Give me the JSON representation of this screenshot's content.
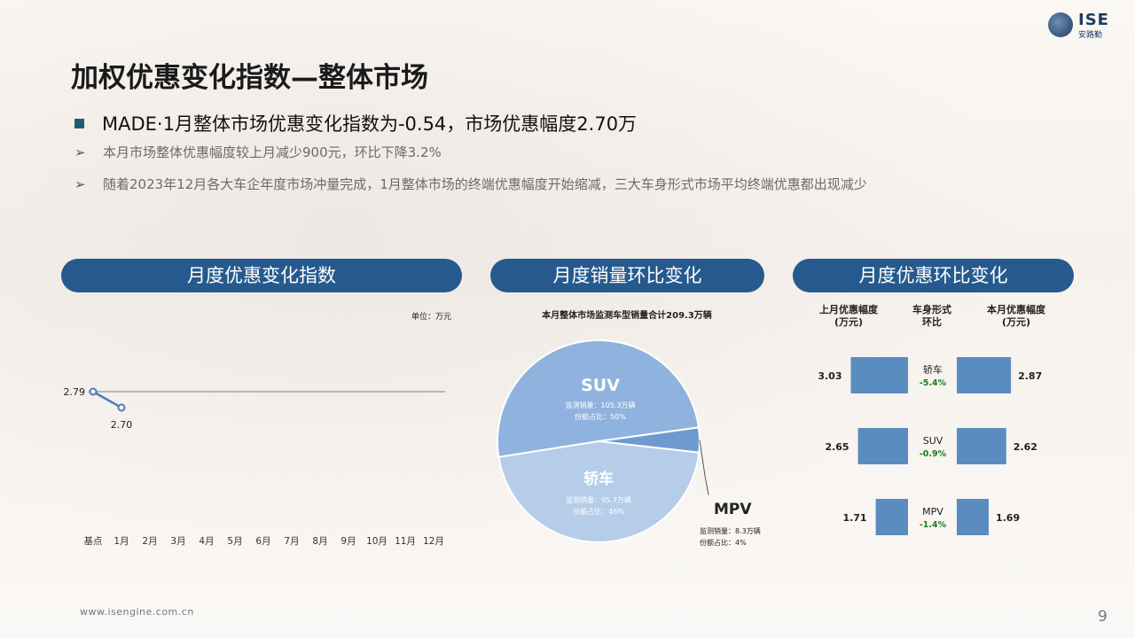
{
  "header": {
    "logo_text": "ISE",
    "logo_subtext": "安路勤",
    "title": "加权优惠变化指数—整体市场",
    "headline": "MADE·1月整体市场优惠变化指数为-0.54，市场优惠幅度2.70万",
    "bullets": [
      "本月市场整体优惠幅度较上月减少900元，环比下降3.2%",
      "随着2023年12月各大车企年度市场冲量完成，1月整体市场的终端优惠幅度开始缩减，三大车身形式市场平均终端优惠都出现减少"
    ],
    "bullet_marker": "➢"
  },
  "panels": {
    "left_title": "月度优惠变化指数",
    "middle_title": "月度销量环比变化",
    "right_title": "月度优惠环比变化"
  },
  "colors": {
    "pill": "#265a8f",
    "bar": "#5a8cc0",
    "pie_suv": "#8fb3de",
    "pie_sedan": "#b5cde9",
    "pie_mpv": "#6f9ad0",
    "positive_change": "#1a7a1a"
  },
  "footer": {
    "url": "www.isengine.com.cn",
    "page": "9"
  },
  "chart_data": [
    {
      "type": "line",
      "unit_label": "单位：万元",
      "categories": [
        "基点",
        "1月",
        "2月",
        "3月",
        "4月",
        "5月",
        "6月",
        "7月",
        "8月",
        "9月",
        "10月",
        "11月",
        "12月"
      ],
      "series": [
        {
          "values": [
            2.79,
            2.7,
            null,
            null,
            null,
            null,
            null,
            null,
            null,
            null,
            null,
            null,
            null
          ]
        }
      ],
      "data_labels": [
        "2.79",
        "2.70"
      ],
      "baseline": 2.79,
      "ylim": [
        2.0,
        3.2
      ],
      "grid": false
    },
    {
      "type": "pie",
      "title": "本月整体市场监测车型销量合计209.3万辆",
      "slices": [
        {
          "name": "SUV",
          "value": 105.3,
          "share": 50,
          "line1": "监测销量：105.3万辆",
          "line2": "份额占比：50%"
        },
        {
          "name": "MPV",
          "value": 8.3,
          "share": 4,
          "line1": "监测销量：8.3万辆",
          "line2": "份额占比：4%"
        },
        {
          "name": "轿车",
          "value": 95.7,
          "share": 46,
          "line1": "监测销量：95.7万辆",
          "line2": "份额占比：46%"
        }
      ]
    },
    {
      "type": "bar",
      "columns": {
        "prev": "上月优惠幅度(万元)",
        "prev_line1": "上月优惠幅度",
        "prev_line2": "(万元)",
        "mid_line1": "车身形式",
        "mid_line2": "环比",
        "curr_line1": "本月优惠幅度",
        "curr_line2": "(万元)"
      },
      "rows": [
        {
          "category": "轿车",
          "prev": 3.03,
          "curr": 2.87,
          "change": "-5.4%"
        },
        {
          "category": "SUV",
          "prev": 2.65,
          "curr": 2.62,
          "change": "-0.9%"
        },
        {
          "category": "MPV",
          "prev": 1.71,
          "curr": 1.69,
          "change": "-1.4%"
        }
      ]
    }
  ]
}
